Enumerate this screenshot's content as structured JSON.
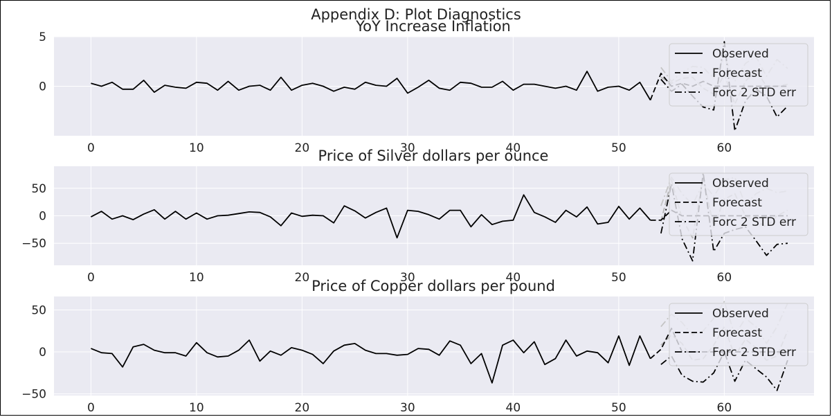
{
  "suptitle": "Appendix D: Plot Diagnostics",
  "chart_data": [
    {
      "type": "line",
      "title": "YoY Increase Inflation",
      "xlim": [
        -3.5,
        68.5
      ],
      "ylim": [
        -5,
        5
      ],
      "xticks": [
        0,
        10,
        20,
        30,
        40,
        50,
        60
      ],
      "xtick_labels": [
        "0",
        "10",
        "20",
        "30",
        "40",
        "50",
        "60"
      ],
      "yticks": [
        5,
        0
      ],
      "ytick_labels": [
        "5",
        "0"
      ],
      "grid": true,
      "legend": {
        "position": "top-right",
        "entries": [
          "Observed",
          "Forecast",
          "Forc 2 STD err"
        ]
      },
      "series": [
        {
          "name": "Observed",
          "style": "solid",
          "color": "#000000",
          "x_start": 0,
          "values": [
            0.3,
            0.0,
            0.4,
            -0.3,
            -0.3,
            0.6,
            -0.6,
            0.1,
            -0.1,
            -0.2,
            0.4,
            0.3,
            -0.4,
            0.5,
            -0.4,
            0.0,
            0.1,
            -0.4,
            0.9,
            -0.4,
            0.1,
            0.3,
            0.0,
            -0.5,
            -0.1,
            -0.3,
            0.4,
            0.1,
            0.0,
            0.8,
            -0.7,
            -0.1,
            0.6,
            -0.2,
            -0.4,
            0.4,
            0.3,
            -0.1,
            -0.1,
            0.5,
            -0.4,
            0.2,
            0.2,
            0.0,
            -0.2,
            0.0,
            -0.4,
            1.5,
            -0.5,
            -0.1,
            0.0,
            -0.4,
            0.4,
            -1.4
          ]
        },
        {
          "name": "Forecast",
          "style": "dashed",
          "color": "#000000",
          "x_start": 53,
          "values": [
            -1.4,
            1.3,
            0.0,
            0.3,
            0.0,
            0.5,
            0.0,
            0.0,
            0.0,
            0.0,
            0.0,
            0.0,
            0.0,
            0.0
          ]
        },
        {
          "name": "Forc 2 STD err",
          "style": "dashdot",
          "color": "#000000",
          "x_start": 54,
          "values": [
            0.7,
            -0.5,
            0.2,
            -1.0,
            -2.1,
            -2.4,
            4.5,
            -4.5,
            -1.5,
            -0.3,
            -1.0,
            -3.1,
            -2.0
          ]
        },
        {
          "name": "",
          "style": "dashdot",
          "color": "#c4c4c4",
          "x_start": 54,
          "values": [
            1.9,
            0.5,
            1.4,
            2.0,
            1.9,
            0.8,
            3.0,
            0.5,
            2.3,
            3.0,
            1.0,
            2.7,
            1.8
          ]
        },
        {
          "name": "",
          "style": "dashed",
          "color": "#b5b5b5",
          "x_start": 54,
          "values": [
            0.9,
            0.3,
            0.8,
            0.9,
            -0.2,
            -0.8,
            1.2,
            -1.8,
            0.5,
            1.6,
            0.0,
            0.0,
            0.2
          ]
        }
      ]
    },
    {
      "type": "line",
      "title": "Price of Silver dollars per ounce",
      "xlim": [
        -3.5,
        68.5
      ],
      "ylim": [
        -90,
        90
      ],
      "xticks": [
        0,
        10,
        20,
        30,
        40,
        50,
        60
      ],
      "xtick_labels": [
        "0",
        "10",
        "20",
        "30",
        "40",
        "50",
        "60"
      ],
      "yticks": [
        50,
        0,
        -50
      ],
      "ytick_labels": [
        "50",
        "0",
        "−50"
      ],
      "grid": true,
      "legend": {
        "position": "top-right",
        "entries": [
          "Observed",
          "Forecast",
          "Forc 2 STD err"
        ]
      },
      "series": [
        {
          "name": "Observed",
          "style": "solid",
          "color": "#000000",
          "x_start": 0,
          "values": [
            -2,
            8,
            -6,
            0,
            -7,
            3,
            11,
            -6,
            8,
            -6,
            5,
            -6,
            0,
            1,
            4,
            7,
            6,
            -2,
            -18,
            5,
            -1,
            1,
            0,
            -13,
            18,
            9,
            -4,
            6,
            14,
            -40,
            10,
            8,
            2,
            -6,
            10,
            10,
            -20,
            2,
            -16,
            -10,
            -8,
            38,
            6,
            -2,
            -12,
            10,
            -2,
            16,
            -15,
            -12,
            17,
            -6,
            14,
            -8
          ]
        },
        {
          "name": "Forecast",
          "style": "dashed",
          "color": "#000000",
          "x_start": 53,
          "values": [
            -8,
            -8,
            10,
            0,
            0,
            0,
            0,
            0,
            0,
            0,
            0,
            0,
            0,
            0
          ]
        },
        {
          "name": "Forc 2 STD err",
          "style": "dashdot",
          "color": "#000000",
          "x_start": 54,
          "values": [
            -32,
            58,
            -42,
            -82,
            78,
            -65,
            -32,
            -25,
            -20,
            -45,
            -72,
            -52,
            -50
          ]
        },
        {
          "name": "",
          "style": "dashdot",
          "color": "#c4c4c4",
          "x_start": 54,
          "values": [
            18,
            70,
            40,
            20,
            60,
            35,
            65,
            70,
            20,
            40,
            50,
            42,
            45
          ]
        },
        {
          "name": "",
          "style": "dashed",
          "color": "#b5b5b5",
          "x_start": 54,
          "values": [
            -10,
            65,
            -5,
            -40,
            70,
            -20,
            30,
            40,
            0,
            -10,
            -20,
            0,
            10
          ]
        }
      ]
    },
    {
      "type": "line",
      "title": "Price of Copper dollars per pound",
      "xlim": [
        -3.5,
        68.5
      ],
      "ylim": [
        -52,
        66
      ],
      "xticks": [
        0,
        10,
        20,
        30,
        40,
        50,
        60
      ],
      "xtick_labels": [
        "0",
        "10",
        "20",
        "30",
        "40",
        "50",
        "60"
      ],
      "yticks": [
        50,
        0,
        -50
      ],
      "ytick_labels": [
        "50",
        "0",
        "−50"
      ],
      "grid": true,
      "legend": {
        "position": "top-right",
        "entries": [
          "Observed",
          "Forecast",
          "Forc 2 STD err"
        ]
      },
      "series": [
        {
          "name": "Observed",
          "style": "solid",
          "color": "#000000",
          "x_start": 0,
          "values": [
            4,
            -1,
            -2,
            -18,
            6,
            9,
            2,
            -1,
            -1,
            -5,
            11,
            -1,
            -6,
            -5,
            2,
            14,
            -11,
            1,
            -4,
            5,
            2,
            -3,
            -14,
            1,
            8,
            10,
            2,
            -2,
            -2,
            -4,
            -3,
            4,
            3,
            -4,
            13,
            8,
            -14,
            -2,
            -37,
            8,
            14,
            -1,
            12,
            -15,
            -8,
            14,
            -5,
            1,
            -1,
            -13,
            19,
            -16,
            19,
            -8
          ]
        },
        {
          "name": "Forecast",
          "style": "dashed",
          "color": "#000000",
          "x_start": 53,
          "values": [
            -8,
            3,
            28,
            0,
            0,
            0,
            0,
            0,
            0,
            0,
            0,
            0,
            0,
            0
          ]
        },
        {
          "name": "Forc 2 STD err",
          "style": "dashdot",
          "color": "#000000",
          "x_start": 54,
          "values": [
            -15,
            -5,
            -28,
            -35,
            -36,
            -25,
            0,
            -35,
            -10,
            -20,
            -30,
            -46,
            -10
          ]
        },
        {
          "name": "",
          "style": "dashdot",
          "color": "#c4c4c4",
          "x_start": 54,
          "values": [
            30,
            45,
            35,
            20,
            25,
            40,
            60,
            20,
            40,
            30,
            10,
            30,
            58
          ]
        },
        {
          "name": "",
          "style": "dashed",
          "color": "#b5b5b5",
          "x_start": 54,
          "values": [
            8,
            20,
            10,
            -10,
            -8,
            8,
            30,
            -5,
            15,
            5,
            -10,
            -5,
            25
          ]
        }
      ]
    }
  ]
}
